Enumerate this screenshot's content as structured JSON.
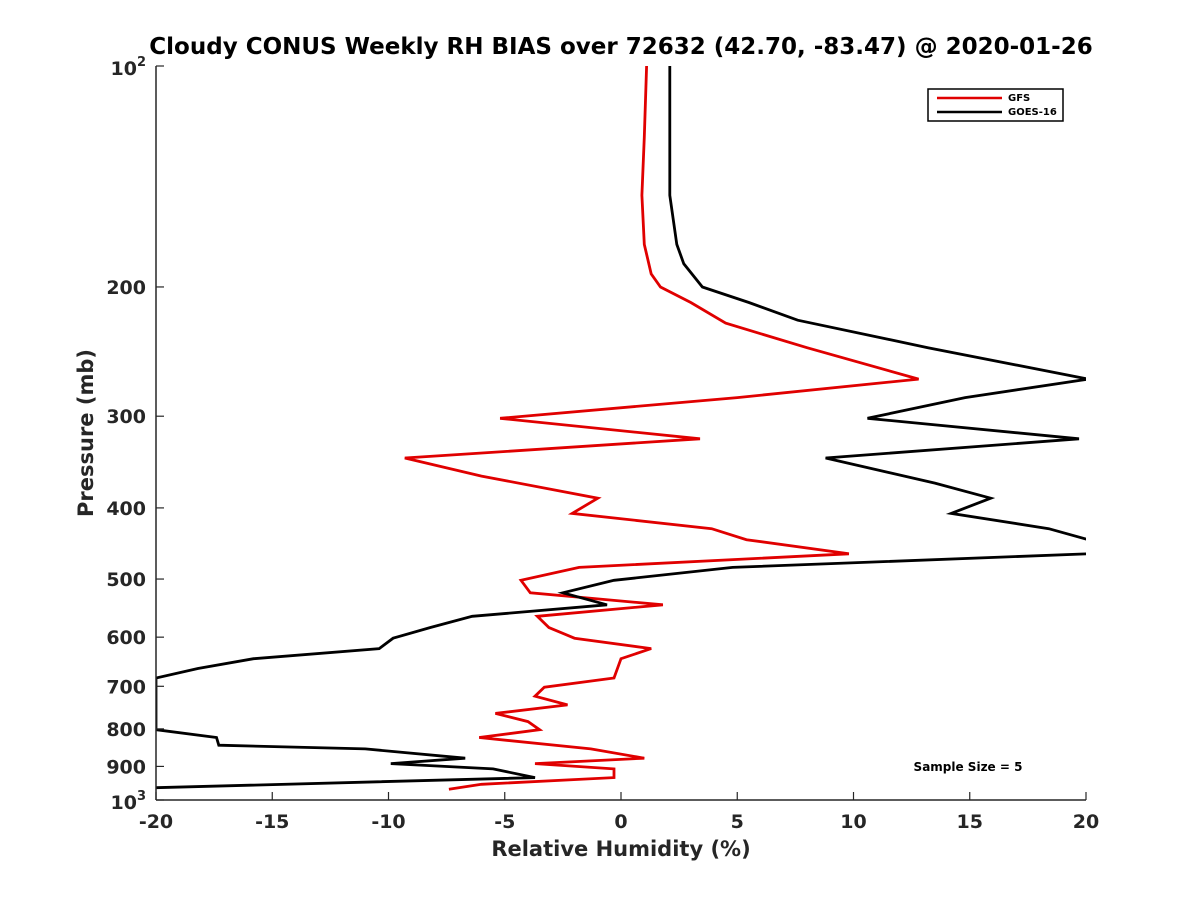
{
  "chart_data": {
    "type": "line",
    "title": "Cloudy CONUS Weekly RH BIAS over 72632 (42.70, -83.47) @ 2020-01-26",
    "xlabel": "Relative Humidity (%)",
    "ylabel": "Pressure (mb)",
    "xlim": [
      -20,
      20
    ],
    "ylim": [
      100,
      1000
    ],
    "y_scale": "log",
    "y_reversed": true,
    "x_ticks": [
      "-20",
      "-15",
      "-10",
      "-5",
      "0",
      "5",
      "10",
      "15",
      "20"
    ],
    "y_ticks": [
      {
        "value": 100,
        "base": "10",
        "exp": "2"
      },
      {
        "value": 200,
        "label": "200"
      },
      {
        "value": 300,
        "label": "300"
      },
      {
        "value": 400,
        "label": "400"
      },
      {
        "value": 500,
        "label": "500"
      },
      {
        "value": 600,
        "label": "600"
      },
      {
        "value": 700,
        "label": "700"
      },
      {
        "value": 800,
        "label": "800"
      },
      {
        "value": 900,
        "label": "900"
      },
      {
        "value": 1000,
        "base": "10",
        "exp": "3"
      }
    ],
    "grid": false,
    "legend_position": "top-right",
    "annotation": "Sample Size = 5",
    "series": [
      {
        "name": "GFS",
        "color": "#e00000",
        "points": [
          [
            1.1,
            100
          ],
          [
            1.0,
            125
          ],
          [
            0.9,
            150
          ],
          [
            1.0,
            175
          ],
          [
            1.3,
            192
          ],
          [
            1.7,
            200
          ],
          [
            3.0,
            210
          ],
          [
            4.5,
            224
          ],
          [
            8.0,
            242
          ],
          [
            12.8,
            267
          ],
          [
            5.0,
            283
          ],
          [
            -5.2,
            302
          ],
          [
            3.4,
            322
          ],
          [
            -9.3,
            342
          ],
          [
            -6.0,
            362
          ],
          [
            -1.0,
            388
          ],
          [
            -2.1,
            407
          ],
          [
            3.9,
            427
          ],
          [
            5.4,
            442
          ],
          [
            9.8,
            462
          ],
          [
            -1.8,
            482
          ],
          [
            -4.3,
            502
          ],
          [
            -3.9,
            522
          ],
          [
            1.8,
            542
          ],
          [
            -3.6,
            562
          ],
          [
            -3.1,
            582
          ],
          [
            -2.0,
            602
          ],
          [
            1.3,
            622
          ],
          [
            0.0,
            642
          ],
          [
            -0.3,
            682
          ],
          [
            -3.3,
            702
          ],
          [
            -3.7,
            722
          ],
          [
            -2.3,
            742
          ],
          [
            -5.4,
            762
          ],
          [
            -4.0,
            782
          ],
          [
            -3.5,
            802
          ],
          [
            -6.1,
            822
          ],
          [
            -1.3,
            852
          ],
          [
            1.0,
            877
          ],
          [
            -3.7,
            892
          ],
          [
            -0.3,
            907
          ],
          [
            -0.3,
            932
          ],
          [
            -6.0,
            952
          ],
          [
            -7.4,
            967
          ]
        ]
      },
      {
        "name": "GOES-16",
        "color": "#000000",
        "points": [
          [
            2.1,
            100
          ],
          [
            2.1,
            125
          ],
          [
            2.1,
            150
          ],
          [
            2.4,
            175
          ],
          [
            2.7,
            186
          ],
          [
            3.5,
            200
          ],
          [
            5.5,
            210
          ],
          [
            7.6,
            222
          ],
          [
            13.2,
            242
          ],
          [
            20.1,
            267
          ],
          [
            14.8,
            283
          ],
          [
            10.6,
            302
          ],
          [
            19.7,
            322
          ],
          [
            8.8,
            342
          ],
          [
            13.5,
            370
          ],
          [
            15.9,
            388
          ],
          [
            14.2,
            407
          ],
          [
            18.4,
            427
          ],
          [
            20.1,
            442
          ],
          [
            20.1,
            462
          ],
          [
            4.8,
            482
          ],
          [
            -0.3,
            502
          ],
          [
            -2.5,
            522
          ],
          [
            -0.6,
            542
          ],
          [
            -6.4,
            562
          ],
          [
            -8.2,
            582
          ],
          [
            -9.8,
            602
          ],
          [
            -10.4,
            622
          ],
          [
            -15.8,
            642
          ],
          [
            -18.2,
            662
          ],
          [
            -20.0,
            682
          ],
          [
            -20.0,
            802
          ],
          [
            -17.4,
            822
          ],
          [
            -17.3,
            842
          ],
          [
            -11.0,
            852
          ],
          [
            -6.7,
            877
          ],
          [
            -9.9,
            892
          ],
          [
            -5.5,
            907
          ],
          [
            -3.7,
            932
          ],
          [
            -20.0,
            962
          ]
        ]
      }
    ]
  }
}
